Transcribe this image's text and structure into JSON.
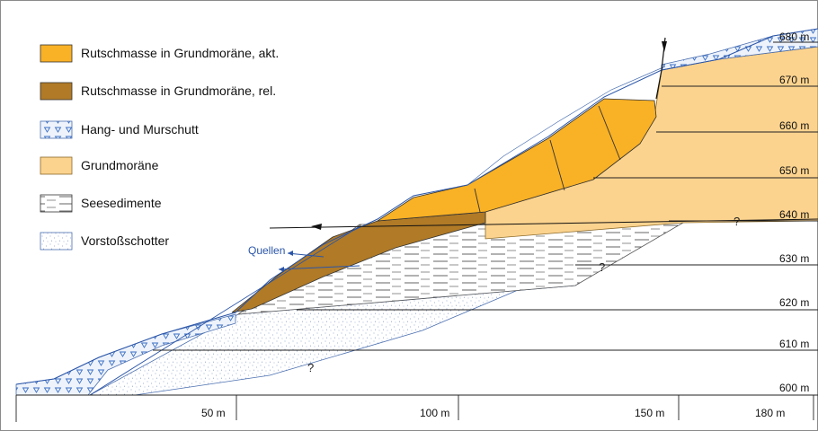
{
  "legend": [
    {
      "label": "Rutschmasse in Grundmoräne, akt.",
      "fill": "#f9b125"
    },
    {
      "label": "Rutschmasse in Grundmoräne, rel.",
      "fill": "#b07a26"
    },
    {
      "label": "Hang- und Murschutt",
      "fill": "#e8eef8"
    },
    {
      "label": "Grundmoräne",
      "fill": "#fcd38e"
    },
    {
      "label": "Seesedimente",
      "fill": "#ffffff"
    },
    {
      "label": "Vorstoßschotter",
      "fill": "#ffffff"
    }
  ],
  "elevations": [
    "680 m",
    "670 m",
    "660 m",
    "650 m",
    "640 m",
    "630 m",
    "620 m",
    "610 m",
    "600 m"
  ],
  "distances": [
    "50 m",
    "100 m",
    "150 m",
    "180 m"
  ],
  "annotations": {
    "springs": "Quellen",
    "uncertain": "?"
  },
  "colors": {
    "active_slide": "#f9b125",
    "relic_slide": "#b07a26",
    "moraine": "#fcd38e",
    "scree_symbol": "#3b6fc4",
    "outline": "#4a6fb0"
  }
}
